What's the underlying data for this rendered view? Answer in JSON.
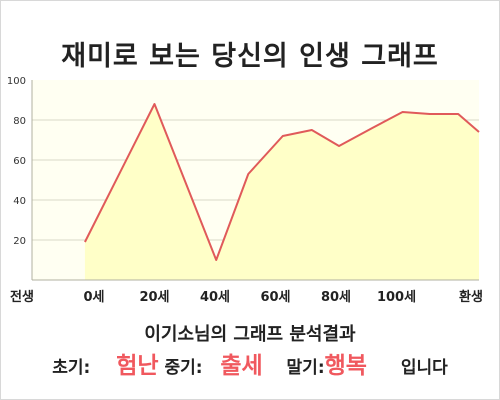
{
  "title": "재미로 보는 당신의 인생 그래프",
  "subtitle": "이기소님의 그래프 분석결과",
  "result": {
    "early_label": "초기:",
    "early_value": "험난",
    "mid_label": "중기:",
    "mid_value": "출세",
    "late_label": "말기:",
    "late_value": "행복",
    "suffix": "입니다"
  },
  "colors": {
    "line": "#e05a5a",
    "fill": "#ffffc8",
    "plot_bg": "#fffff2",
    "grid": "#d8d8c8",
    "highlight": "#f0585e"
  },
  "chart_data": {
    "type": "area",
    "xlabel": "",
    "ylabel": "",
    "ylim": [
      0,
      100
    ],
    "yticks": [
      20,
      40,
      60,
      80,
      100
    ],
    "grid": true,
    "x_categories": [
      "전생",
      "0세",
      "20세",
      "40세",
      "60세",
      "80세",
      "100세",
      "환생"
    ],
    "x": [
      -0.15,
      1,
      2.02,
      2.55,
      3.12,
      3.6,
      4.05,
      4.6,
      5.1,
      5.55,
      6.02,
      7
    ],
    "y": [
      19,
      88,
      10,
      53,
      72,
      75,
      67,
      76,
      84,
      83,
      83,
      74
    ]
  }
}
